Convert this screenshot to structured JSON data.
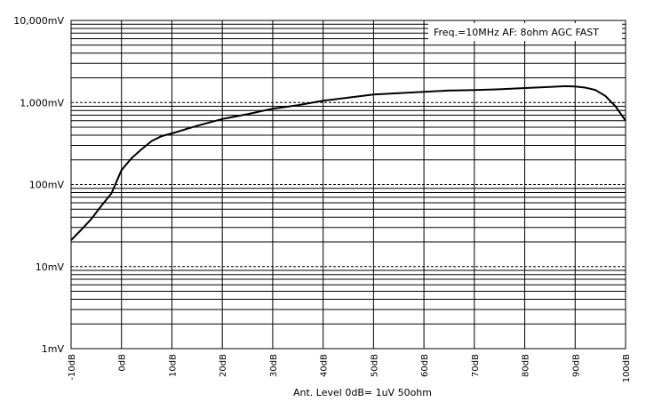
{
  "chart_data": {
    "type": "line",
    "annotation": "Freq.=10MHz  AF: 8ohm  AGC FAST",
    "xlabel": "Ant. Level 0dB= 1uV 50ohm",
    "ylabel": "",
    "xlim": [
      -10,
      100
    ],
    "ylim": [
      1,
      10000
    ],
    "yscale": "log",
    "grid": true,
    "x_ticks": [
      "-10dB",
      "0dB",
      "10dB",
      "20dB",
      "30dB",
      "40dB",
      "50dB",
      "60dB",
      "70dB",
      "80dB",
      "90dB",
      "100dB"
    ],
    "y_ticks": [
      "1mV",
      "10mV",
      "100mV",
      "1,000mV",
      "10,000mV"
    ],
    "series": [
      {
        "x": [
          -10,
          -8,
          -6,
          -4,
          -2,
          0,
          2,
          4,
          6,
          8,
          10,
          15,
          20,
          25,
          30,
          35,
          40,
          45,
          50,
          55,
          60,
          65,
          70,
          75,
          80,
          85,
          88,
          90,
          92,
          94,
          96,
          98,
          100
        ],
        "y": [
          21,
          28,
          38,
          55,
          78,
          150,
          210,
          270,
          340,
          390,
          420,
          520,
          630,
          720,
          840,
          930,
          1050,
          1150,
          1250,
          1300,
          1350,
          1400,
          1420,
          1450,
          1500,
          1550,
          1580,
          1570,
          1520,
          1420,
          1200,
          900,
          600
        ]
      }
    ]
  }
}
